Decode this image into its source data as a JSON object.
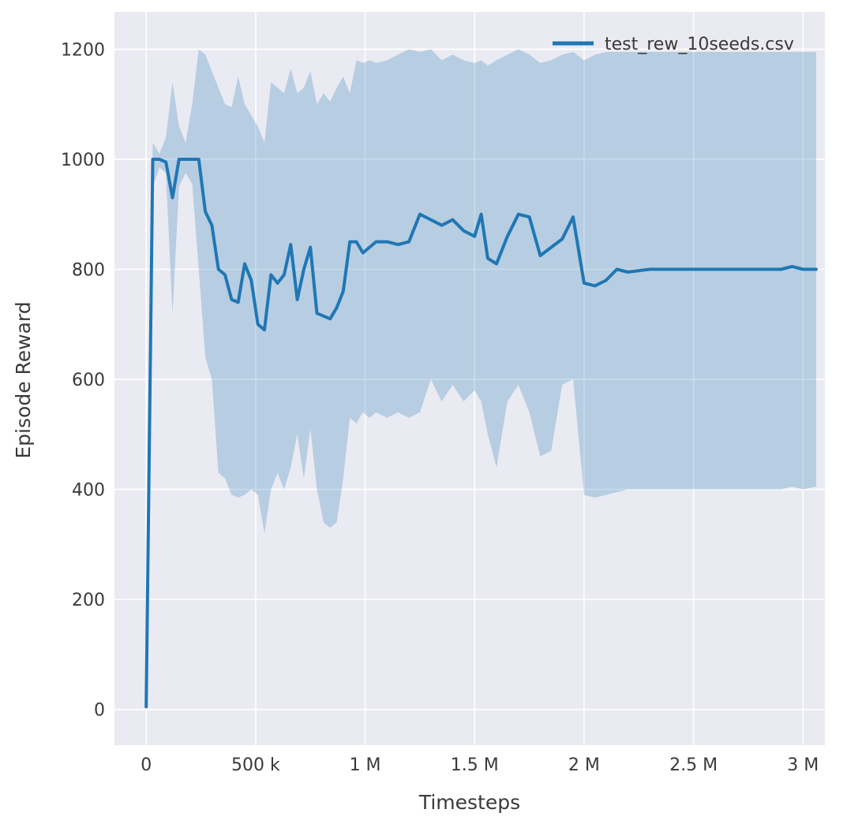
{
  "chart_data": {
    "type": "line",
    "title": "",
    "xlabel": "Timesteps",
    "ylabel": "Episode Reward",
    "legend": [
      "test_rew_10seeds.csv"
    ],
    "legend_position": "upper right",
    "grid": true,
    "xlim": [
      -145000,
      3100000
    ],
    "ylim": [
      -65,
      1268
    ],
    "xticks": {
      "values": [
        0,
        500000,
        1000000,
        1500000,
        2000000,
        2500000,
        3000000
      ],
      "labels": [
        "0",
        "500 k",
        "1 M",
        "1.5 M",
        "2 M",
        "2.5 M",
        "3 M"
      ]
    },
    "yticks": {
      "values": [
        0,
        200,
        400,
        600,
        800,
        1000,
        1200
      ],
      "labels": [
        "0",
        "200",
        "400",
        "600",
        "800",
        "1000",
        "1200"
      ]
    },
    "colors": {
      "line": "#1f77b4",
      "band": "rgba(31,119,180,0.25)",
      "plot_bg": "#eaeaf2",
      "grid": "#ffffff",
      "text": "#3a3a3a"
    },
    "x": [
      0,
      30000,
      60000,
      90000,
      120000,
      150000,
      180000,
      210000,
      240000,
      270000,
      300000,
      330000,
      360000,
      390000,
      420000,
      450000,
      480000,
      510000,
      540000,
      570000,
      600000,
      630000,
      660000,
      690000,
      720000,
      750000,
      780000,
      810000,
      840000,
      870000,
      900000,
      930000,
      960000,
      990000,
      1020000,
      1050000,
      1100000,
      1150000,
      1200000,
      1250000,
      1300000,
      1350000,
      1400000,
      1450000,
      1500000,
      1530000,
      1560000,
      1600000,
      1650000,
      1700000,
      1750000,
      1800000,
      1850000,
      1900000,
      1950000,
      2000000,
      2050000,
      2100000,
      2150000,
      2200000,
      2300000,
      2400000,
      2500000,
      2600000,
      2700000,
      2800000,
      2900000,
      2950000,
      3000000,
      3060000
    ],
    "series": [
      {
        "name": "test_rew_10seeds.csv",
        "mean": [
          5,
          1000,
          1000,
          995,
          930,
          1000,
          1000,
          1000,
          1000,
          905,
          880,
          800,
          790,
          745,
          740,
          810,
          780,
          700,
          690,
          790,
          775,
          790,
          845,
          745,
          800,
          840,
          720,
          715,
          710,
          730,
          760,
          850,
          850,
          830,
          840,
          850,
          850,
          845,
          850,
          900,
          890,
          880,
          890,
          870,
          860,
          900,
          820,
          810,
          860,
          900,
          895,
          825,
          840,
          855,
          895,
          775,
          770,
          780,
          800,
          795,
          800,
          800,
          800,
          800,
          800,
          800,
          800,
          805,
          800,
          800
        ],
        "lower": [
          5,
          950,
          985,
          975,
          720,
          950,
          975,
          955,
          800,
          640,
          600,
          430,
          420,
          390,
          385,
          390,
          400,
          390,
          320,
          400,
          430,
          400,
          440,
          500,
          420,
          510,
          400,
          340,
          330,
          340,
          420,
          530,
          520,
          540,
          530,
          540,
          530,
          540,
          530,
          540,
          600,
          560,
          590,
          560,
          580,
          560,
          500,
          440,
          560,
          590,
          540,
          460,
          470,
          590,
          600,
          390,
          385,
          390,
          395,
          400,
          400,
          400,
          400,
          400,
          400,
          400,
          400,
          405,
          400,
          405
        ],
        "upper": [
          5,
          1030,
          1010,
          1040,
          1140,
          1060,
          1030,
          1100,
          1200,
          1190,
          1160,
          1130,
          1100,
          1095,
          1150,
          1100,
          1080,
          1060,
          1030,
          1140,
          1130,
          1120,
          1165,
          1120,
          1130,
          1160,
          1100,
          1120,
          1105,
          1130,
          1150,
          1120,
          1180,
          1175,
          1180,
          1175,
          1180,
          1190,
          1200,
          1195,
          1200,
          1180,
          1190,
          1180,
          1175,
          1180,
          1170,
          1180,
          1190,
          1200,
          1190,
          1175,
          1180,
          1190,
          1195,
          1180,
          1190,
          1195,
          1195,
          1195,
          1195,
          1195,
          1195,
          1195,
          1195,
          1195,
          1195,
          1195,
          1195,
          1195
        ]
      }
    ]
  }
}
